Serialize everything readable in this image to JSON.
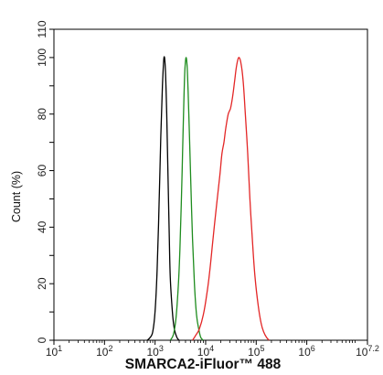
{
  "chart_data": {
    "type": "line",
    "xlabel": "SMARCA2-iFluor™ 488",
    "ylabel": "Count  (%)",
    "x_scale": "log",
    "xlim": [
      10,
      15848932
    ],
    "ylim": [
      0,
      110
    ],
    "y_ticks": [
      0,
      10,
      20,
      30,
      40,
      50,
      60,
      70,
      80,
      90,
      100,
      110
    ],
    "y_tick_labels": [
      "0",
      "",
      "20",
      "",
      "40",
      "",
      "60",
      "",
      "80",
      "",
      "100",
      "110"
    ],
    "x_ticks": [
      {
        "base": "10",
        "exp": "1",
        "value": 10
      },
      {
        "base": "10",
        "exp": "2",
        "value": 100
      },
      {
        "base": "10",
        "exp": "3",
        "value": 1000
      },
      {
        "base": "10",
        "exp": "4",
        "value": 10000
      },
      {
        "base": "10",
        "exp": "5",
        "value": 100000
      },
      {
        "base": "10",
        "exp": "6",
        "value": 1000000
      },
      {
        "base": "10",
        "exp": "7.2",
        "value": 15848932
      }
    ],
    "grid": false,
    "legend": "none",
    "series": [
      {
        "color": "#000000",
        "points": [
          [
            700,
            0
          ],
          [
            800,
            1
          ],
          [
            900,
            3
          ],
          [
            1000,
            10
          ],
          [
            1100,
            25
          ],
          [
            1200,
            48
          ],
          [
            1300,
            72
          ],
          [
            1400,
            90
          ],
          [
            1500,
            100
          ],
          [
            1600,
            96
          ],
          [
            1700,
            80
          ],
          [
            1800,
            58
          ],
          [
            1900,
            38
          ],
          [
            2000,
            22
          ],
          [
            2200,
            10
          ],
          [
            2400,
            4
          ],
          [
            2700,
            1
          ],
          [
            3000,
            0
          ]
        ]
      },
      {
        "color": "#1e8c1e",
        "points": [
          [
            2000,
            0
          ],
          [
            2300,
            2
          ],
          [
            2600,
            8
          ],
          [
            2900,
            20
          ],
          [
            3100,
            32
          ],
          [
            3300,
            48
          ],
          [
            3500,
            66
          ],
          [
            3700,
            84
          ],
          [
            3900,
            96
          ],
          [
            4100,
            100
          ],
          [
            4300,
            97
          ],
          [
            4500,
            88
          ],
          [
            4800,
            72
          ],
          [
            5100,
            55
          ],
          [
            5500,
            36
          ],
          [
            6000,
            20
          ],
          [
            6600,
            9
          ],
          [
            7300,
            4
          ],
          [
            8000,
            1
          ],
          [
            9000,
            0
          ]
        ]
      },
      {
        "color": "#e32626",
        "points": [
          [
            5500,
            0
          ],
          [
            6500,
            2
          ],
          [
            7500,
            4
          ],
          [
            9000,
            9
          ],
          [
            10500,
            16
          ],
          [
            12000,
            24
          ],
          [
            14000,
            36
          ],
          [
            16500,
            48
          ],
          [
            19000,
            58
          ],
          [
            21000,
            66
          ],
          [
            23000,
            70
          ],
          [
            25000,
            75
          ],
          [
            28000,
            80
          ],
          [
            31000,
            82
          ],
          [
            34000,
            86
          ],
          [
            37000,
            91
          ],
          [
            40000,
            96
          ],
          [
            43000,
            99
          ],
          [
            46000,
            100
          ],
          [
            50000,
            98
          ],
          [
            55000,
            92
          ],
          [
            60000,
            82
          ],
          [
            68000,
            66
          ],
          [
            75000,
            50
          ],
          [
            85000,
            34
          ],
          [
            95000,
            22
          ],
          [
            110000,
            12
          ],
          [
            125000,
            6
          ],
          [
            140000,
            3
          ],
          [
            160000,
            1
          ],
          [
            180000,
            0
          ]
        ]
      }
    ]
  }
}
